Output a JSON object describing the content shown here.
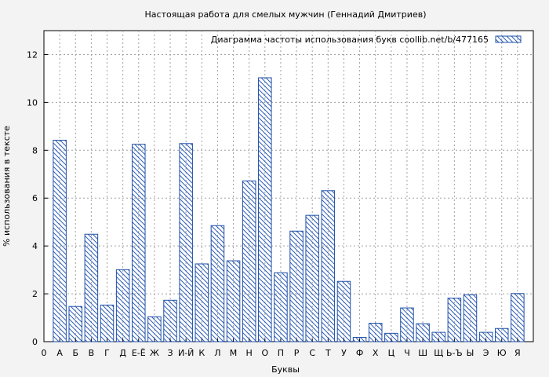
{
  "chart_data": {
    "type": "bar",
    "title": "Настоящая работа для смелых мужчин (Геннадий Дмитриев)",
    "xlabel": "Буквы",
    "ylabel": "% использования в тексте",
    "legend": {
      "label": "Диаграмма частоты использования букв  coollib.net/b/477165",
      "position": "top-right"
    },
    "x_tick_start": "0",
    "categories": [
      "А",
      "Б",
      "В",
      "Г",
      "Д",
      "Е-Ё",
      "Ж",
      "З",
      "И-Й",
      "К",
      "Л",
      "М",
      "Н",
      "О",
      "П",
      "Р",
      "С",
      "Т",
      "У",
      "Ф",
      "Х",
      "Ц",
      "Ч",
      "Ш",
      "Щ",
      "Ь-Ъ",
      "Ы",
      "Э",
      "Ю",
      "Я"
    ],
    "values": [
      8.42,
      1.47,
      4.49,
      1.53,
      3.01,
      8.25,
      1.04,
      1.73,
      8.28,
      3.25,
      4.85,
      3.38,
      6.72,
      11.03,
      2.88,
      4.62,
      5.28,
      6.31,
      2.52,
      0.18,
      0.77,
      0.35,
      1.41,
      0.75,
      0.39,
      1.82,
      1.96,
      0.39,
      0.55,
      2.01
    ],
    "ylim": [
      0,
      13
    ],
    "yticks": [
      0,
      2,
      4,
      6,
      8,
      10,
      12
    ],
    "grid": true,
    "colors": {
      "bar_stroke": "#1f4fa8",
      "hatch": "#2f5fb8",
      "grid": "#a0a0a0",
      "plot_bg": "#ffffff",
      "page_bg": "#f3f3f3"
    }
  }
}
